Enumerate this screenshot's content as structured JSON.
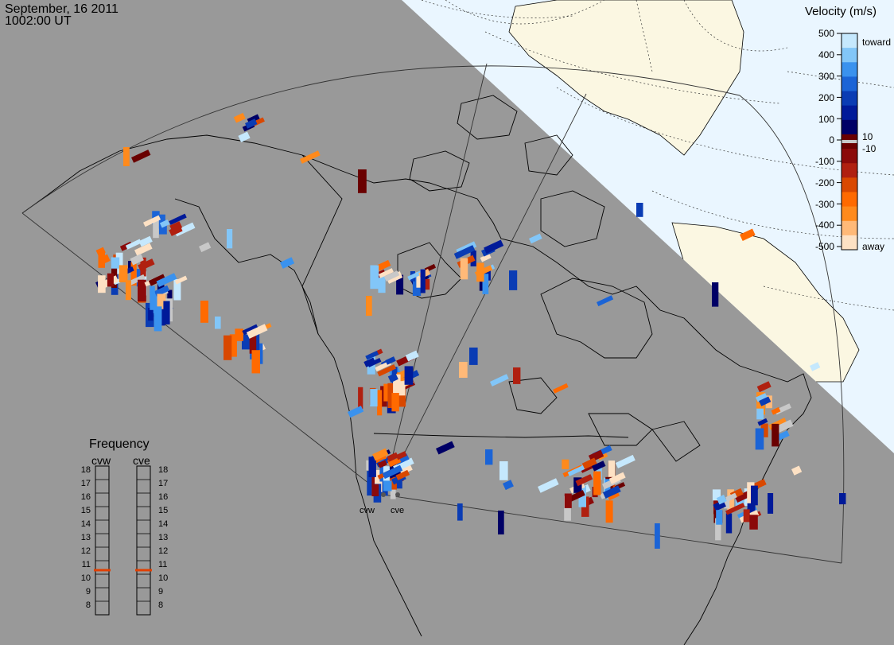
{
  "header": {
    "date": "September, 16 2011",
    "time": "1002:00 UT"
  },
  "colorbar": {
    "title": "Velocity (m/s)",
    "ticks": [
      "500",
      "400",
      "300",
      "200",
      "100",
      "0",
      "-100",
      "-200",
      "-300",
      "-400",
      "-500"
    ],
    "inner_ticks": [
      "10",
      "-10"
    ],
    "toward_label": "toward",
    "away_label": "away",
    "colors": [
      "#fde1c4",
      "#ffb978",
      "#ff8a1c",
      "#ff6a00",
      "#d94800",
      "#b02010",
      "#8b0a0a",
      "#6a0000",
      "#000066",
      "#001a99",
      "#0a3cb4",
      "#1b64d6",
      "#3a92ee",
      "#82c6f8",
      "#c5e8fd"
    ],
    "zero_color": "#c8c8c8"
  },
  "frequency": {
    "title": "Frequency",
    "radars": [
      {
        "code": "cvw",
        "value": 10.8
      },
      {
        "code": "cve",
        "value": 10.8
      }
    ],
    "scale": [
      "18",
      "17",
      "16",
      "15",
      "14",
      "13",
      "12",
      "11",
      "10",
      "9",
      "8"
    ],
    "indicator_color": "#e04000"
  },
  "map": {
    "sites": [
      {
        "code": "cvw"
      },
      {
        "code": "cve"
      }
    ],
    "colors": {
      "background": "#999999",
      "ocean": "#eaf6ff",
      "land_outside": "#fbf7e2",
      "coast": "#000000"
    }
  }
}
